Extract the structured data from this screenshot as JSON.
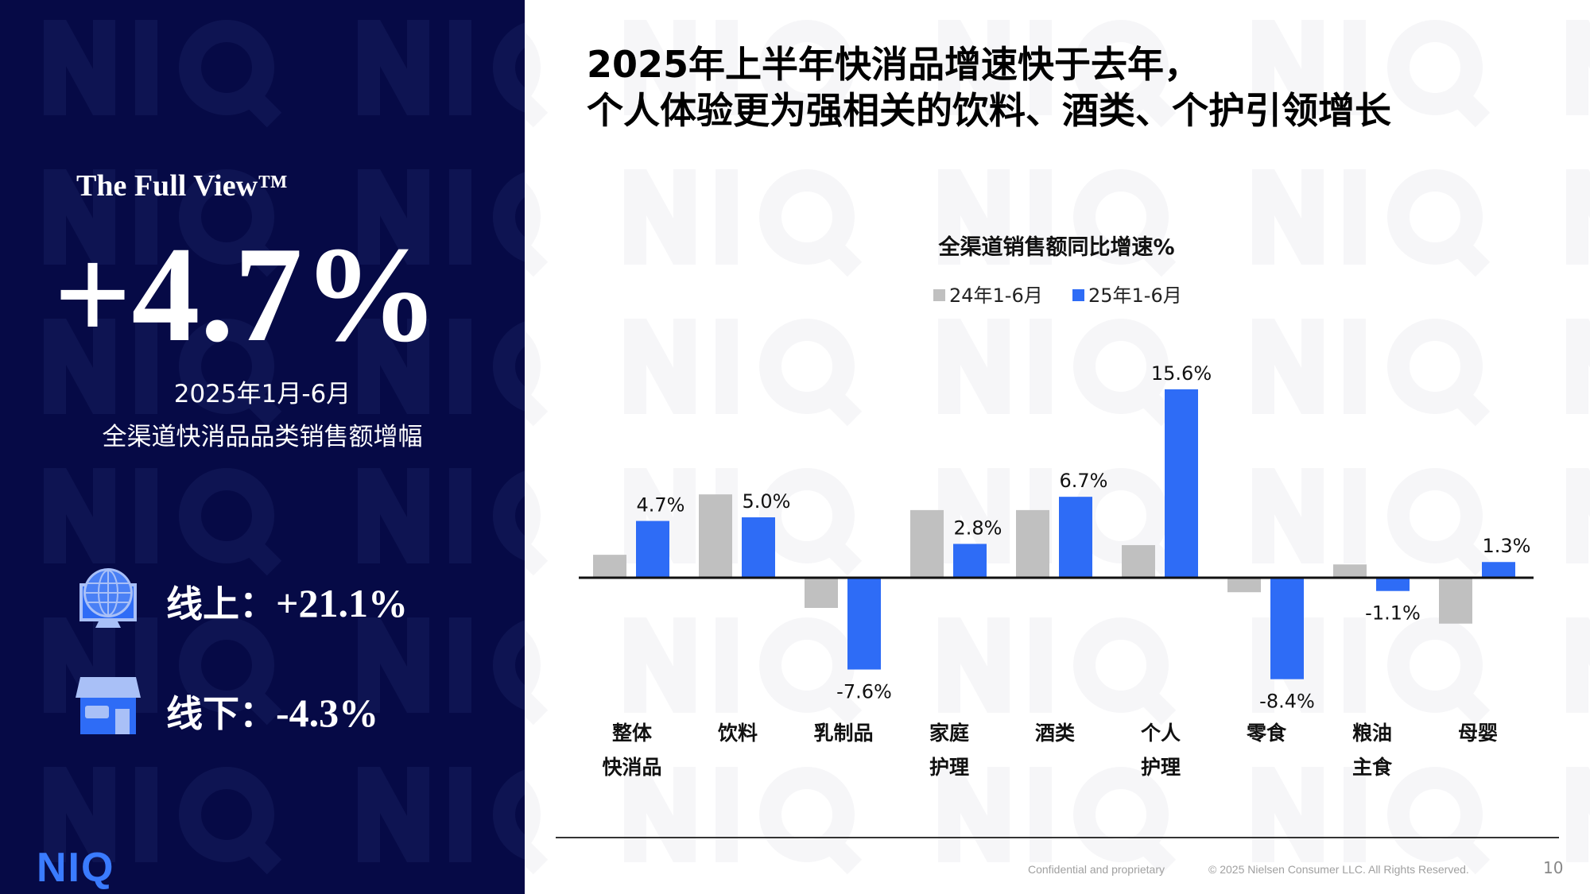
{
  "left_panel": {
    "brand_heading": "The Full View™",
    "headline_value": "+4.7%",
    "period": "2025年1月-6月",
    "description": "全渠道快消品品类销售额增幅",
    "online": {
      "label": "线上：",
      "value": "+21.1%",
      "icon": "globe-monitor-icon"
    },
    "offline": {
      "label": "线下：",
      "value": "-4.3%",
      "icon": "storefront-icon"
    },
    "logo": "NIQ",
    "background_color": "#060a46"
  },
  "slide": {
    "title_line1": "2025年上半年快消品增速快于去年，",
    "title_line2": "个人体验更为强相关的饮料、酒类、个护引领增长",
    "footer_confidential": "Confidential and proprietary",
    "footer_copyright": "© 2025 Nielsen Consumer LLC. All Rights Reserved.",
    "page_number": "10"
  },
  "chart_data": {
    "type": "bar",
    "title": "全渠道销售额同比增速%",
    "categories": [
      [
        "整体",
        "快消品"
      ],
      [
        "饮料"
      ],
      [
        "乳制品"
      ],
      [
        "家庭",
        "护理"
      ],
      [
        "酒类"
      ],
      [
        "个人",
        "护理"
      ],
      [
        "零食"
      ],
      [
        "粮油",
        "主食"
      ],
      [
        "母婴"
      ]
    ],
    "series": [
      {
        "name": "24年1-6月",
        "color": "#c0c0c0",
        "values": [
          1.9,
          6.9,
          -2.5,
          5.6,
          5.6,
          2.7,
          -1.2,
          1.1,
          -3.8
        ],
        "labeled": false
      },
      {
        "name": "25年1-6月",
        "color": "#2e6cf6",
        "values": [
          4.7,
          5.0,
          -7.6,
          2.8,
          6.7,
          15.6,
          -8.4,
          -1.1,
          1.3
        ],
        "labeled": true,
        "labels": [
          "4.7%",
          "5.0%",
          "-7.6%",
          "2.8%",
          "6.7%",
          "15.6%",
          "-8.4%",
          "-1.1%",
          "1.3%"
        ]
      }
    ],
    "legend_placement": "top-center",
    "grid": false,
    "ylim": [
      -9,
      16
    ]
  }
}
